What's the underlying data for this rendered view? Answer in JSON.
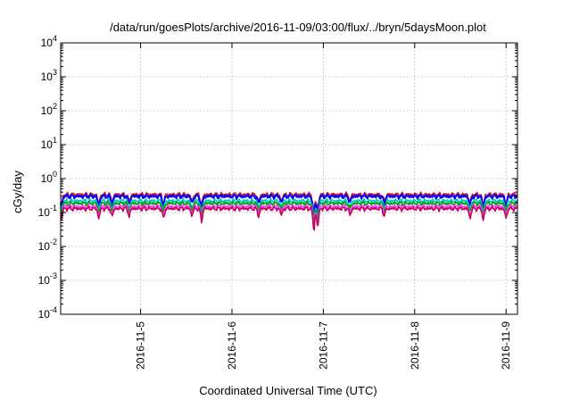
{
  "chart_data": {
    "type": "line",
    "title": "/data/run/goesPlots/archive/2016-11-09/03:00/flux/../bryn/5daysMoon.plot",
    "xlabel": "Coordinated Universal Time (UTC)",
    "ylabel": "cGy/day",
    "y_scale": "log",
    "ylim": [
      0.0001,
      10000
    ],
    "y_ticks": [
      {
        "base": "10",
        "exp": "-4",
        "value": 0.0001
      },
      {
        "base": "10",
        "exp": "-3",
        "value": 0.001
      },
      {
        "base": "10",
        "exp": "-2",
        "value": 0.01
      },
      {
        "base": "10",
        "exp": "-1",
        "value": 0.1
      },
      {
        "base": "10",
        "exp": "0",
        "value": 1
      },
      {
        "base": "10",
        "exp": "1",
        "value": 10
      },
      {
        "base": "10",
        "exp": "2",
        "value": 100
      },
      {
        "base": "10",
        "exp": "3",
        "value": 1000
      },
      {
        "base": "10",
        "exp": "4",
        "value": 10000
      }
    ],
    "xlim": [
      "2016-11-04T03:00",
      "2016-11-09T03:00"
    ],
    "x_ticks": [
      {
        "label": "2016-11-5",
        "value": "2016-11-05T00:00"
      },
      {
        "label": "2016-11-6",
        "value": "2016-11-06T00:00"
      },
      {
        "label": "2016-11-7",
        "value": "2016-11-07T00:00"
      },
      {
        "label": "2016-11-8",
        "value": "2016-11-08T00:00"
      },
      {
        "label": "2016-11-9",
        "value": "2016-11-09T00:00"
      }
    ],
    "grid": true,
    "legend": "none",
    "dips": [
      {
        "time": "2016-11-04T03:10",
        "factor": 0.45
      },
      {
        "time": "2016-11-04T13:00",
        "factor": 0.5
      },
      {
        "time": "2016-11-04T16:30",
        "factor": 0.55
      },
      {
        "time": "2016-11-04T21:00",
        "factor": 0.6
      },
      {
        "time": "2016-11-05T06:00",
        "factor": 0.5
      },
      {
        "time": "2016-11-05T13:30",
        "factor": 0.6
      },
      {
        "time": "2016-11-05T16:00",
        "factor": 0.4
      },
      {
        "time": "2016-11-06T07:00",
        "factor": 0.6
      },
      {
        "time": "2016-11-06T13:00",
        "factor": 0.65
      },
      {
        "time": "2016-11-06T21:30",
        "factor": 0.14
      },
      {
        "time": "2016-11-06T22:30",
        "factor": 0.2
      },
      {
        "time": "2016-11-07T07:00",
        "factor": 0.65
      },
      {
        "time": "2016-11-07T16:00",
        "factor": 0.6
      },
      {
        "time": "2016-11-08T14:30",
        "factor": 0.5
      },
      {
        "time": "2016-11-08T18:00",
        "factor": 0.45
      },
      {
        "time": "2016-11-09T00:00",
        "factor": 0.5
      }
    ],
    "series": [
      {
        "color": "#e3191c",
        "baseline": 0.34
      },
      {
        "color": "#0000ff",
        "baseline": 0.3
      },
      {
        "color": "#00c8c8",
        "baseline": 0.22
      },
      {
        "color": "#00a000",
        "baseline": 0.185
      },
      {
        "color": "#ff40ff",
        "baseline": 0.15
      },
      {
        "color": "#c80064",
        "baseline": 0.13
      }
    ]
  }
}
